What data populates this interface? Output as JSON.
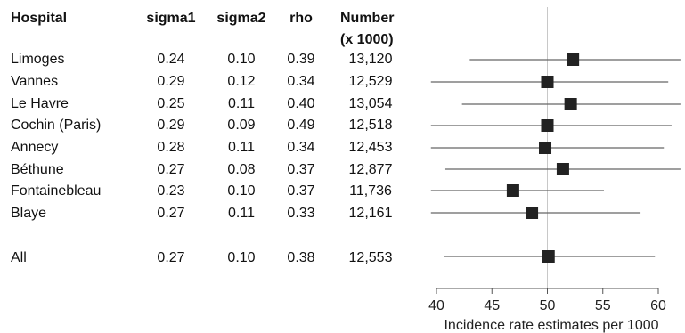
{
  "table": {
    "headers": {
      "hospital": "Hospital",
      "sigma1": "sigma1",
      "sigma2": "sigma2",
      "rho": "rho",
      "number_line1": "Number",
      "number_line2": "(x 1000)"
    },
    "rows": [
      {
        "hospital": "Limoges",
        "sigma1": "0.24",
        "sigma2": "0.10",
        "rho": "0.39",
        "number": "13,120"
      },
      {
        "hospital": "Vannes",
        "sigma1": "0.29",
        "sigma2": "0.12",
        "rho": "0.34",
        "number": "12,529"
      },
      {
        "hospital": "Le Havre",
        "sigma1": "0.25",
        "sigma2": "0.11",
        "rho": "0.40",
        "number": "13,054"
      },
      {
        "hospital": "Cochin (Paris)",
        "sigma1": "0.29",
        "sigma2": "0.09",
        "rho": "0.49",
        "number": "12,518"
      },
      {
        "hospital": "Annecy",
        "sigma1": "0.28",
        "sigma2": "0.11",
        "rho": "0.34",
        "number": "12,453"
      },
      {
        "hospital": "Béthune",
        "sigma1": "0.27",
        "sigma2": "0.08",
        "rho": "0.37",
        "number": "12,877"
      },
      {
        "hospital": "Fontainebleau",
        "sigma1": "0.23",
        "sigma2": "0.10",
        "rho": "0.37",
        "number": "11,736"
      },
      {
        "hospital": "Blaye",
        "sigma1": "0.27",
        "sigma2": "0.11",
        "rho": "0.33",
        "number": "12,161"
      }
    ],
    "total": {
      "hospital": "All",
      "sigma1": "0.27",
      "sigma2": "0.10",
      "rho": "0.38",
      "number": "12,553"
    }
  },
  "chart_data": {
    "type": "scatter",
    "subtype": "forest-plot",
    "title": "",
    "xlabel": "Incidence rate estimates per 1000",
    "ylabel": "",
    "xlim": [
      39.5,
      62
    ],
    "xticks": [
      40,
      45,
      50,
      55,
      60
    ],
    "reference_line": 50,
    "categories": [
      "Limoges",
      "Vannes",
      "Le Havre",
      "Cochin (Paris)",
      "Annecy",
      "Béthune",
      "Fontainebleau",
      "Blaye",
      "All"
    ],
    "estimates": [
      52.3,
      50.0,
      52.1,
      50.0,
      49.8,
      51.4,
      46.9,
      48.6,
      50.1
    ],
    "lower": [
      43.0,
      39.5,
      42.3,
      39.5,
      39.5,
      40.8,
      39.5,
      39.5,
      40.7
    ],
    "upper": [
      62.0,
      60.9,
      62.0,
      61.2,
      60.5,
      62.0,
      55.1,
      58.4,
      59.7
    ],
    "grid": false,
    "colors": {
      "marker": "#222222",
      "interval": "#666666",
      "reference": "#c8c8c8",
      "axis": "#555555"
    }
  }
}
